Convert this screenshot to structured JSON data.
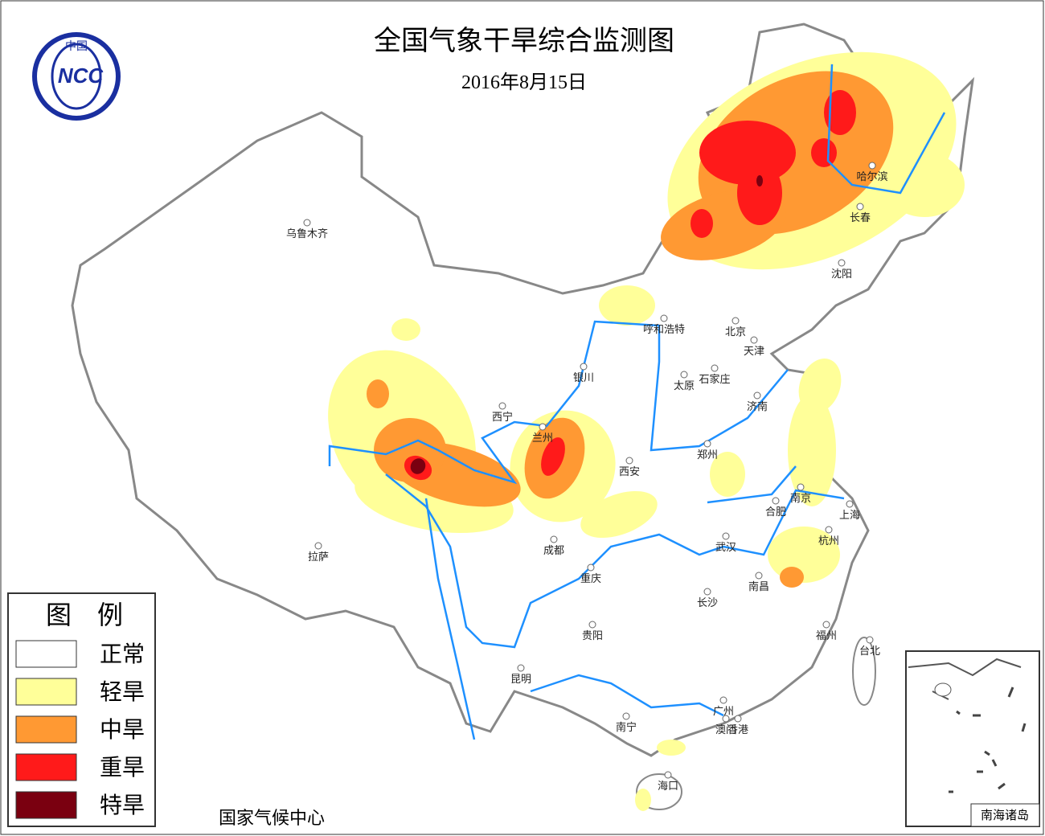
{
  "header": {
    "title": "全国气象干旱综合监测图",
    "date": "2016年8月15日"
  },
  "logo": {
    "top": "中国",
    "text": "NCC"
  },
  "legend": {
    "title": "图　例",
    "items": [
      {
        "label": "正常",
        "color": "#ffffff"
      },
      {
        "label": "轻旱",
        "color": "#ffff99"
      },
      {
        "label": "中旱",
        "color": "#ff9933"
      },
      {
        "label": "重旱",
        "color": "#ff1a1a"
      },
      {
        "label": "特旱",
        "color": "#7a0010"
      }
    ]
  },
  "cities": [
    "乌鲁木齐",
    "哈尔滨",
    "长春",
    "沈阳",
    "呼和浩特",
    "北京",
    "天津",
    "银川",
    "太原",
    "石家庄",
    "济南",
    "西宁",
    "兰州",
    "郑州",
    "西安",
    "南京",
    "合肥",
    "上海",
    "拉萨",
    "成都",
    "武汉",
    "杭州",
    "重庆",
    "南昌",
    "长沙",
    "贵阳",
    "福州",
    "台北",
    "昆明",
    "广州",
    "南宁",
    "澳门",
    "香港",
    "海口"
  ],
  "footer": "国家气候中心",
  "inset": {
    "label": "南海诸岛"
  }
}
